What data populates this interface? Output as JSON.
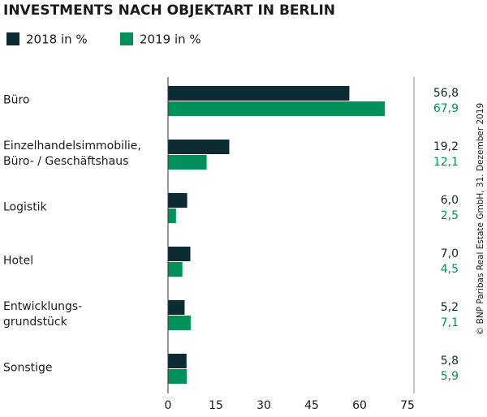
{
  "chart_data": {
    "type": "hbar",
    "title": "INVESTMENTS NACH OBJEKTART IN BERLIN",
    "categories": [
      "Büro",
      "Einzelhandelsimmobilie,\nBüro- / Geschäftshaus",
      "Logistik",
      "Hotel",
      "Entwicklungs-\ngrundstück",
      "Sonstige"
    ],
    "series": [
      {
        "name": "2018 in %",
        "color": "#0d2b33",
        "values": [
          56.8,
          19.2,
          6.0,
          7.0,
          5.2,
          5.8
        ],
        "value_labels": [
          "56,8",
          "19,2",
          "6,0",
          "7,0",
          "5,2",
          "5,8"
        ]
      },
      {
        "name": "2019 in %",
        "color": "#00915a",
        "values": [
          67.9,
          12.1,
          2.5,
          4.5,
          7.1,
          5.9
        ],
        "value_labels": [
          "67,9",
          "12,1",
          "2,5",
          "4,5",
          "7,1",
          "5,9"
        ]
      }
    ],
    "xlim": [
      0,
      75
    ],
    "xticks": [
      0,
      15,
      30,
      45,
      60,
      75
    ],
    "grid": false,
    "source": "© BNP Paribas Real Estate GmbH, 31. Dezember 2019"
  }
}
